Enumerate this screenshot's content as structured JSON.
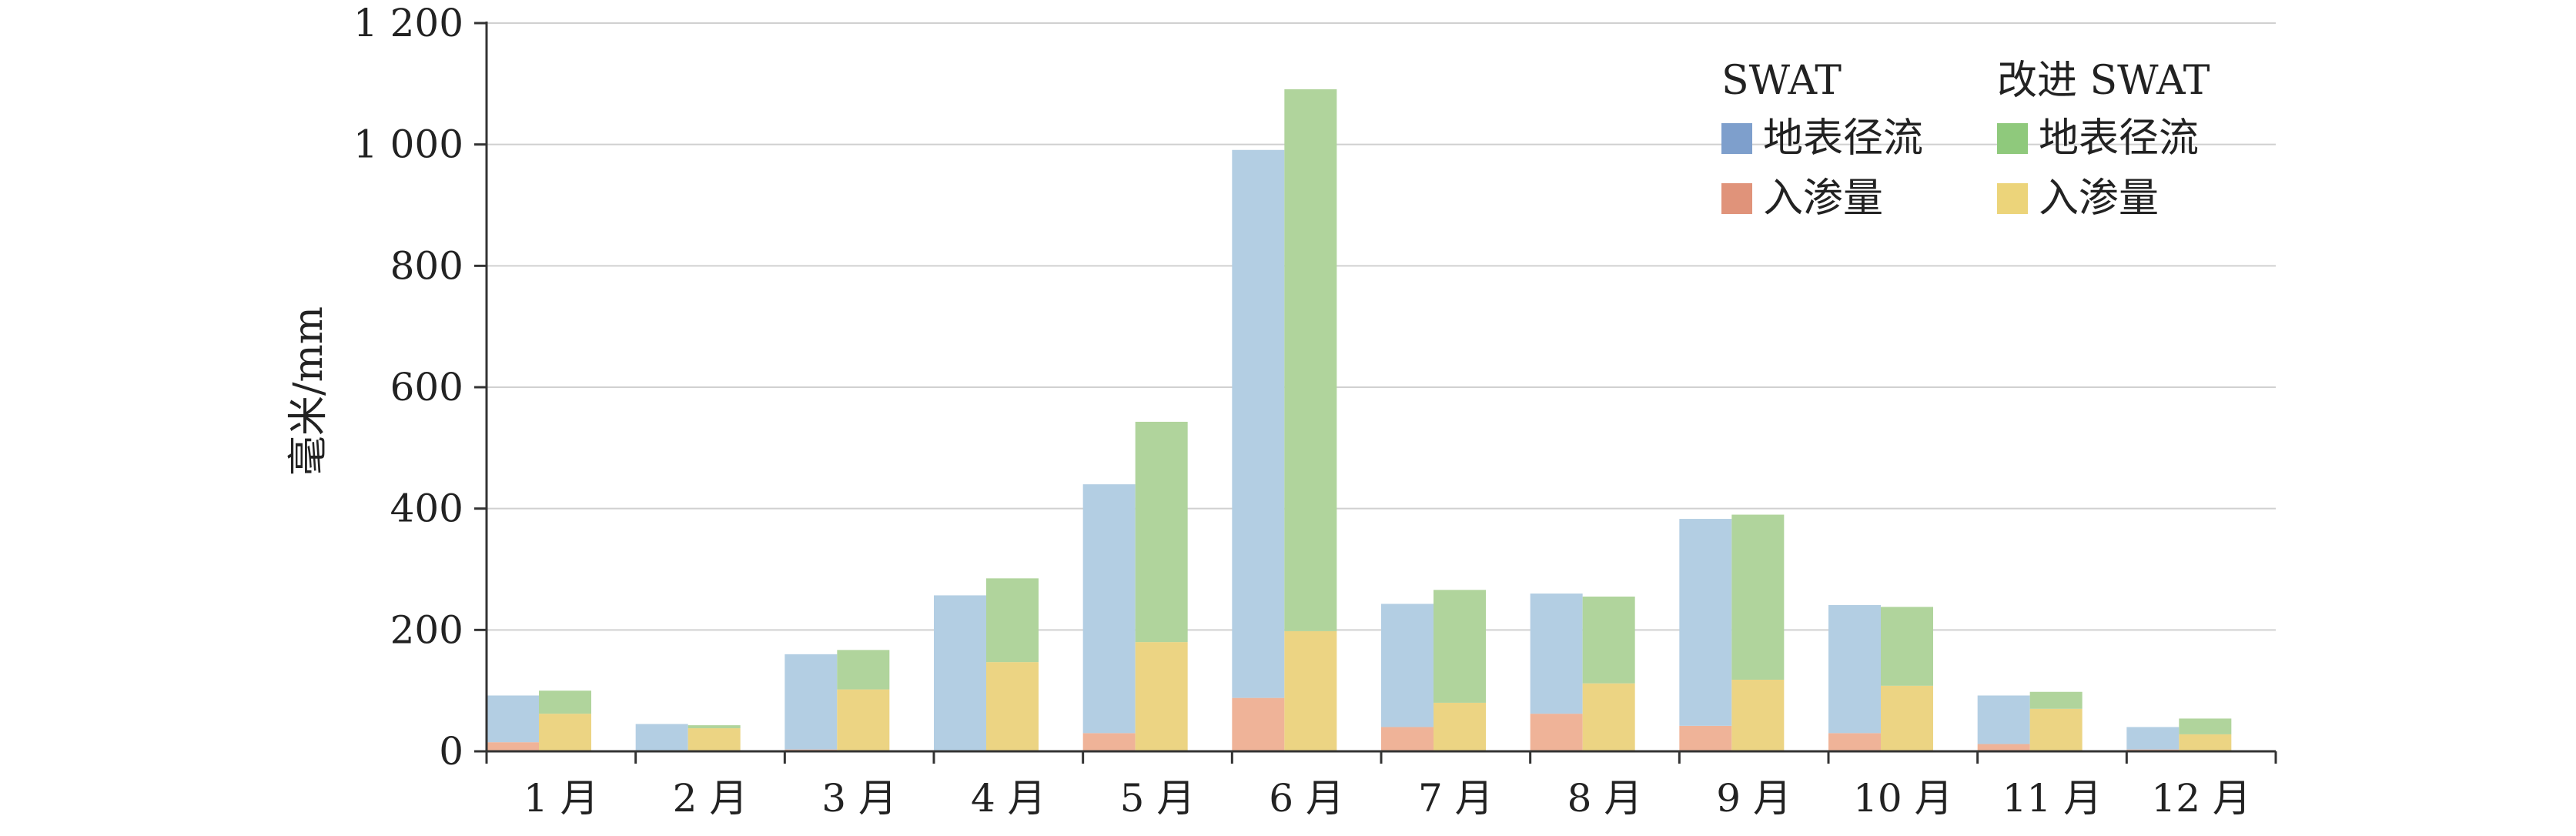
{
  "chart_data": {
    "type": "bar",
    "stacked": true,
    "grouped": true,
    "title": "",
    "xlabel": "",
    "ylabel": "毫米/mm",
    "ylim": [
      0,
      1200
    ],
    "yticks": [
      0,
      200,
      400,
      600,
      800,
      1000,
      1200
    ],
    "ytick_labels": [
      "0",
      "200",
      "400",
      "600",
      "800",
      "1 000",
      "1 200"
    ],
    "grid": true,
    "legend_position": "top-right",
    "categories": [
      "1 月",
      "2 月",
      "3 月",
      "4 月",
      "5 月",
      "6 月",
      "7 月",
      "8 月",
      "9 月",
      "10 月",
      "11 月",
      "12 月"
    ],
    "groups": [
      {
        "name": "SWAT",
        "series": [
          {
            "name": "入渗量",
            "color": "#efb398",
            "legend_color": "#e0937a",
            "values": [
              15,
              2,
              3,
              2,
              30,
              88,
              40,
              62,
              42,
              30,
              12,
              3
            ]
          },
          {
            "name": "地表径流",
            "color": "#b3cee3",
            "legend_color": "#7e9fcc",
            "values": [
              77,
              43,
              157,
              255,
              410,
              903,
              203,
              198,
              341,
              211,
              80,
              37
            ]
          }
        ]
      },
      {
        "name": "改进 SWAT",
        "series": [
          {
            "name": "入渗量",
            "color": "#ecd483",
            "legend_color": "#ecd47a",
            "values": [
              62,
              38,
              102,
              147,
              180,
              198,
              80,
              112,
              118,
              108,
              70,
              28
            ]
          },
          {
            "name": "地表径流",
            "color": "#b0d49c",
            "legend_color": "#8fc97c",
            "values": [
              38,
              5,
              65,
              138,
              363,
              893,
              186,
              143,
              272,
              130,
              28,
              26
            ]
          }
        ]
      }
    ]
  }
}
